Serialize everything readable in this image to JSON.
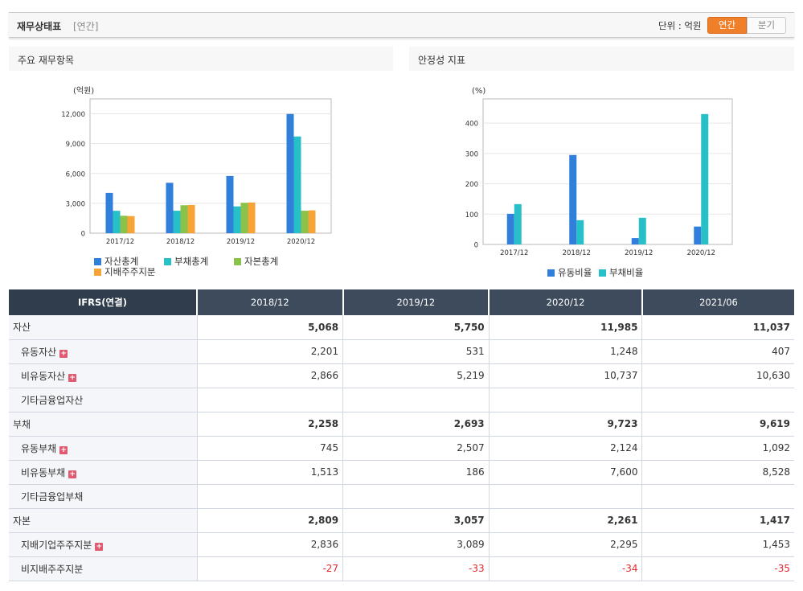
{
  "header": {
    "title": "재무상태표",
    "subtitle": "[연간]",
    "unit_label": "단위 : 억원",
    "toggle_annual": "연간",
    "toggle_quarter": "분기"
  },
  "panel_left": {
    "title": "주요 재무항목"
  },
  "panel_right": {
    "title": "안정성 지표"
  },
  "colors": {
    "blue": "#2f7fdb",
    "teal": "#27c0c8",
    "green": "#8bc34a",
    "orange": "#f7a335",
    "negative": "#e0282e",
    "header_bg": "#3d4b5c"
  },
  "chart_data": [
    {
      "type": "bar",
      "title": "주요 재무항목",
      "ylabel": "(억원)",
      "ylim": [
        0,
        13500
      ],
      "yticks": [
        0,
        3000,
        6000,
        9000,
        12000
      ],
      "ytick_labels": [
        "0",
        "3,000",
        "6,000",
        "9,000",
        "12,000"
      ],
      "categories": [
        "2017/12",
        "2018/12",
        "2019/12",
        "2020/12"
      ],
      "series": [
        {
          "name": "자산총계",
          "color": "#2f7fdb",
          "values": [
            4050,
            5068,
            5750,
            11985
          ]
        },
        {
          "name": "부채총계",
          "color": "#27c0c8",
          "values": [
            2250,
            2258,
            2693,
            9723
          ]
        },
        {
          "name": "자본총계",
          "color": "#8bc34a",
          "values": [
            1750,
            2809,
            3057,
            2261
          ]
        },
        {
          "name": "지배주주지분",
          "color": "#f7a335",
          "values": [
            1720,
            2836,
            3089,
            2295
          ]
        }
      ],
      "legend": "bottom-left",
      "grid": true
    },
    {
      "type": "bar",
      "title": "안정성 지표",
      "ylabel": "(%)",
      "ylim": [
        0,
        480
      ],
      "yticks": [
        0,
        100,
        200,
        300,
        400
      ],
      "ytick_labels": [
        "0",
        "100",
        "200",
        "300",
        "400"
      ],
      "categories": [
        "2017/12",
        "2018/12",
        "2019/12",
        "2020/12"
      ],
      "series": [
        {
          "name": "유동비율",
          "color": "#2f7fdb",
          "values": [
            101,
            295,
            21,
            59
          ]
        },
        {
          "name": "부채비율",
          "color": "#27c0c8",
          "values": [
            133,
            80,
            88,
            430
          ]
        }
      ],
      "legend": "bottom-center",
      "grid": true
    }
  ],
  "table": {
    "corner": "IFRS(연결)",
    "columns": [
      "2018/12",
      "2019/12",
      "2020/12",
      "2021/06"
    ],
    "rows": [
      {
        "label": "자산",
        "values": [
          "5,068",
          "5,750",
          "11,985",
          "11,037"
        ]
      },
      {
        "label": "유동자산",
        "values": [
          "2,201",
          "531",
          "1,248",
          "407"
        ]
      },
      {
        "label": "비유동자산",
        "values": [
          "2,866",
          "5,219",
          "10,737",
          "10,630"
        ]
      },
      {
        "label": "기타금융업자산",
        "values": [
          "",
          "",
          "",
          ""
        ]
      },
      {
        "label": "부채",
        "values": [
          "2,258",
          "2,693",
          "9,723",
          "9,619"
        ]
      },
      {
        "label": "유동부채",
        "values": [
          "745",
          "2,507",
          "2,124",
          "1,092"
        ]
      },
      {
        "label": "비유동부채",
        "values": [
          "1,513",
          "186",
          "7,600",
          "8,528"
        ]
      },
      {
        "label": "기타금융업부채",
        "values": [
          "",
          "",
          "",
          ""
        ]
      },
      {
        "label": "자본",
        "values": [
          "2,809",
          "3,057",
          "2,261",
          "1,417"
        ]
      },
      {
        "label": "지배기업주주지분",
        "values": [
          "2,836",
          "3,089",
          "2,295",
          "1,453"
        ]
      },
      {
        "label": "비지배주주지분",
        "values": [
          "-27",
          "-33",
          "-34",
          "-35"
        ]
      }
    ],
    "expand_icon": "+"
  }
}
